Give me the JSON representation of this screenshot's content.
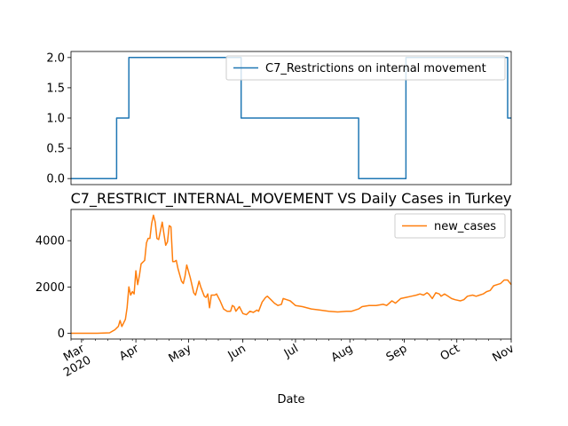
{
  "chart_data": [
    {
      "type": "line",
      "title": "",
      "xlabel": "",
      "ylabel": "",
      "x_range": [
        "2020-02-24",
        "2020-11-01"
      ],
      "ylim": [
        -0.1,
        2.1
      ],
      "y_ticks": [
        0.0,
        0.5,
        1.0,
        1.5,
        2.0
      ],
      "y_tick_labels": [
        "0.0",
        "0.5",
        "1.0",
        "1.5",
        "2.0"
      ],
      "grid": false,
      "legend_position": "upper-right",
      "series": [
        {
          "name": "C7_Restrictions on internal movement",
          "color": "#1f77b4",
          "points": [
            [
              "2020-02-24",
              0
            ],
            [
              "2020-03-21",
              0
            ],
            [
              "2020-03-21",
              1
            ],
            [
              "2020-03-28",
              1
            ],
            [
              "2020-03-28",
              2
            ],
            [
              "2020-05-31",
              2
            ],
            [
              "2020-05-31",
              1
            ],
            [
              "2020-08-06",
              1
            ],
            [
              "2020-08-06",
              0
            ],
            [
              "2020-09-02",
              0
            ],
            [
              "2020-09-02",
              2
            ],
            [
              "2020-10-30",
              2
            ],
            [
              "2020-10-30",
              1
            ],
            [
              "2020-11-01",
              1
            ]
          ]
        }
      ]
    },
    {
      "type": "line",
      "title": "C7_RESTRICT_INTERNAL_MOVEMENT VS Daily Cases in Turkey",
      "xlabel": "Date",
      "ylabel": "",
      "x_range": [
        "2020-02-24",
        "2020-11-01"
      ],
      "x_ticks": [
        "2020-03-01",
        "2020-04-01",
        "2020-05-01",
        "2020-06-01",
        "2020-07-01",
        "2020-08-01",
        "2020-09-01",
        "2020-10-01",
        "2020-11-01"
      ],
      "x_tick_labels": [
        "Mar\n2020",
        "Apr",
        "May",
        "Jun",
        "Jul",
        "Aug",
        "Sep",
        "Oct",
        "Nov"
      ],
      "ylim": [
        -250,
        5350
      ],
      "y_ticks": [
        0,
        2000,
        4000
      ],
      "y_tick_labels": [
        "0",
        "2000",
        "4000"
      ],
      "grid": false,
      "legend_position": "upper-right",
      "series": [
        {
          "name": "new_cases",
          "color": "#ff7f0e",
          "points": [
            [
              "2020-02-24",
              0
            ],
            [
              "2020-03-10",
              0
            ],
            [
              "2020-03-17",
              20
            ],
            [
              "2020-03-20",
              150
            ],
            [
              "2020-03-22",
              300
            ],
            [
              "2020-03-23",
              550
            ],
            [
              "2020-03-24",
              290
            ],
            [
              "2020-03-26",
              600
            ],
            [
              "2020-03-27",
              1100
            ],
            [
              "2020-03-28",
              2000
            ],
            [
              "2020-03-29",
              1650
            ],
            [
              "2020-03-30",
              1800
            ],
            [
              "2020-03-31",
              1700
            ],
            [
              "2020-04-01",
              2700
            ],
            [
              "2020-04-02",
              2100
            ],
            [
              "2020-04-03",
              2500
            ],
            [
              "2020-04-04",
              3000
            ],
            [
              "2020-04-06",
              3150
            ],
            [
              "2020-04-07",
              3900
            ],
            [
              "2020-04-08",
              4100
            ],
            [
              "2020-04-09",
              4100
            ],
            [
              "2020-04-10",
              4750
            ],
            [
              "2020-04-11",
              5100
            ],
            [
              "2020-04-12",
              4800
            ],
            [
              "2020-04-13",
              4100
            ],
            [
              "2020-04-14",
              4050
            ],
            [
              "2020-04-16",
              4800
            ],
            [
              "2020-04-17",
              4300
            ],
            [
              "2020-04-18",
              3800
            ],
            [
              "2020-04-19",
              3950
            ],
            [
              "2020-04-20",
              4650
            ],
            [
              "2020-04-21",
              4600
            ],
            [
              "2020-04-22",
              3100
            ],
            [
              "2020-04-23",
              3100
            ],
            [
              "2020-04-24",
              3150
            ],
            [
              "2020-04-25",
              2800
            ],
            [
              "2020-04-27",
              2250
            ],
            [
              "2020-04-28",
              2150
            ],
            [
              "2020-04-29",
              2450
            ],
            [
              "2020-04-30",
              2950
            ],
            [
              "2020-05-02",
              2400
            ],
            [
              "2020-05-04",
              1750
            ],
            [
              "2020-05-05",
              1650
            ],
            [
              "2020-05-07",
              2250
            ],
            [
              "2020-05-08",
              2000
            ],
            [
              "2020-05-10",
              1600
            ],
            [
              "2020-05-11",
              1550
            ],
            [
              "2020-05-12",
              1700
            ],
            [
              "2020-05-13",
              1100
            ],
            [
              "2020-05-14",
              1650
            ],
            [
              "2020-05-16",
              1650
            ],
            [
              "2020-05-17",
              1700
            ],
            [
              "2020-05-19",
              1400
            ],
            [
              "2020-05-21",
              1050
            ],
            [
              "2020-05-23",
              950
            ],
            [
              "2020-05-25",
              950
            ],
            [
              "2020-05-26",
              1200
            ],
            [
              "2020-05-27",
              1150
            ],
            [
              "2020-05-28",
              950
            ],
            [
              "2020-05-30",
              1150
            ],
            [
              "2020-06-01",
              850
            ],
            [
              "2020-06-03",
              800
            ],
            [
              "2020-06-05",
              950
            ],
            [
              "2020-06-07",
              900
            ],
            [
              "2020-06-09",
              1000
            ],
            [
              "2020-06-10",
              950
            ],
            [
              "2020-06-12",
              1350
            ],
            [
              "2020-06-14",
              1550
            ],
            [
              "2020-06-15",
              1600
            ],
            [
              "2020-06-17",
              1450
            ],
            [
              "2020-06-19",
              1300
            ],
            [
              "2020-06-21",
              1200
            ],
            [
              "2020-06-23",
              1250
            ],
            [
              "2020-06-24",
              1500
            ],
            [
              "2020-06-26",
              1450
            ],
            [
              "2020-06-28",
              1400
            ],
            [
              "2020-07-01",
              1200
            ],
            [
              "2020-07-05",
              1150
            ],
            [
              "2020-07-10",
              1050
            ],
            [
              "2020-07-15",
              1000
            ],
            [
              "2020-07-20",
              950
            ],
            [
              "2020-07-25",
              920
            ],
            [
              "2020-07-30",
              950
            ],
            [
              "2020-08-02",
              950
            ],
            [
              "2020-08-06",
              1050
            ],
            [
              "2020-08-08",
              1150
            ],
            [
              "2020-08-12",
              1200
            ],
            [
              "2020-08-16",
              1200
            ],
            [
              "2020-08-20",
              1250
            ],
            [
              "2020-08-22",
              1200
            ],
            [
              "2020-08-25",
              1400
            ],
            [
              "2020-08-27",
              1300
            ],
            [
              "2020-08-30",
              1500
            ],
            [
              "2020-09-02",
              1550
            ],
            [
              "2020-09-05",
              1600
            ],
            [
              "2020-09-08",
              1650
            ],
            [
              "2020-09-10",
              1700
            ],
            [
              "2020-09-12",
              1650
            ],
            [
              "2020-09-14",
              1750
            ],
            [
              "2020-09-15",
              1700
            ],
            [
              "2020-09-17",
              1500
            ],
            [
              "2020-09-19",
              1750
            ],
            [
              "2020-09-21",
              1700
            ],
            [
              "2020-09-22",
              1600
            ],
            [
              "2020-09-24",
              1700
            ],
            [
              "2020-09-26",
              1600
            ],
            [
              "2020-09-28",
              1500
            ],
            [
              "2020-09-30",
              1450
            ],
            [
              "2020-10-03",
              1400
            ],
            [
              "2020-10-05",
              1450
            ],
            [
              "2020-10-07",
              1600
            ],
            [
              "2020-10-10",
              1650
            ],
            [
              "2020-10-12",
              1600
            ],
            [
              "2020-10-14",
              1650
            ],
            [
              "2020-10-16",
              1700
            ],
            [
              "2020-10-18",
              1800
            ],
            [
              "2020-10-20",
              1850
            ],
            [
              "2020-10-22",
              2050
            ],
            [
              "2020-10-24",
              2100
            ],
            [
              "2020-10-26",
              2150
            ],
            [
              "2020-10-28",
              2300
            ],
            [
              "2020-10-30",
              2300
            ],
            [
              "2020-11-01",
              2100
            ]
          ]
        }
      ]
    }
  ]
}
